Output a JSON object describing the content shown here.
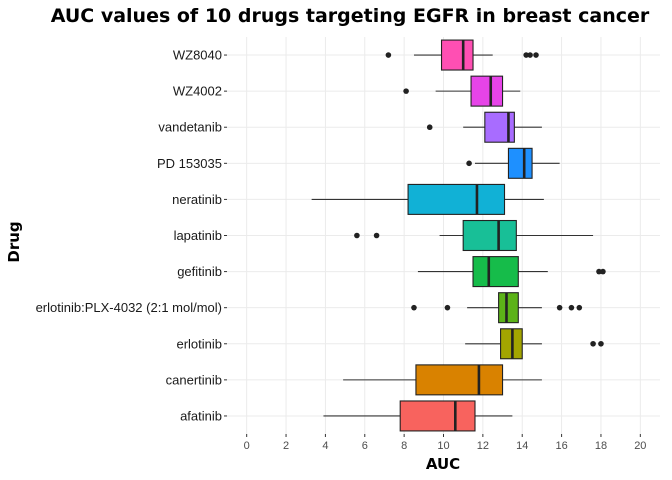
{
  "chart_data": {
    "type": "boxplot",
    "orientation": "horizontal",
    "title": "AUC values of 10 drugs targeting EGFR in breast cancer",
    "xlabel": "AUC",
    "ylabel": "Drug",
    "xlim": [
      -1,
      21
    ],
    "xticks": [
      0,
      2,
      4,
      6,
      8,
      10,
      12,
      14,
      16,
      18,
      20
    ],
    "grid": true,
    "legend": "none",
    "categories": [
      "WZ8040",
      "WZ4002",
      "vandetanib",
      "PD 153035",
      "neratinib",
      "lapatinib",
      "gefitinib",
      "erlotinib:PLX-4032 (2:1 mol/mol)",
      "erlotinib",
      "canertinib",
      "afatinib"
    ],
    "series": [
      {
        "category": "WZ8040",
        "min": 8.5,
        "q1": 9.9,
        "median": 11.0,
        "q3": 11.5,
        "max": 12.5,
        "outliers": [
          7.2,
          14.2,
          14.4,
          14.7
        ],
        "color": "#FF4FB3"
      },
      {
        "category": "WZ4002",
        "min": 9.6,
        "q1": 11.4,
        "median": 12.4,
        "q3": 13.0,
        "max": 13.9,
        "outliers": [
          8.1
        ],
        "color": "#E644E8"
      },
      {
        "category": "vandetanib",
        "min": 11.0,
        "q1": 12.1,
        "median": 13.3,
        "q3": 13.6,
        "max": 15.0,
        "outliers": [
          9.3
        ],
        "color": "#A86CFF"
      },
      {
        "category": "PD 153035",
        "min": 11.6,
        "q1": 13.3,
        "median": 14.1,
        "q3": 14.5,
        "max": 15.9,
        "outliers": [
          11.3
        ],
        "color": "#1E90FF"
      },
      {
        "category": "neratinib",
        "min": 3.3,
        "q1": 8.2,
        "median": 11.7,
        "q3": 13.1,
        "max": 15.1,
        "outliers": [],
        "color": "#11B1D6"
      },
      {
        "category": "lapatinib",
        "min": 9.8,
        "q1": 11.0,
        "median": 12.8,
        "q3": 13.7,
        "max": 17.6,
        "outliers": [
          5.6,
          6.6
        ],
        "color": "#18BF97"
      },
      {
        "category": "gefitinib",
        "min": 8.7,
        "q1": 11.5,
        "median": 12.3,
        "q3": 13.8,
        "max": 15.3,
        "outliers": [
          17.9,
          18.1
        ],
        "color": "#16BC4A"
      },
      {
        "category": "erlotinib:PLX-4032 (2:1 mol/mol)",
        "min": 11.2,
        "q1": 12.8,
        "median": 13.2,
        "q3": 13.8,
        "max": 15.0,
        "outliers": [
          8.5,
          10.2,
          15.9,
          16.5,
          16.9
        ],
        "color": "#5CB318"
      },
      {
        "category": "erlotinib",
        "min": 11.1,
        "q1": 12.9,
        "median": 13.5,
        "q3": 14.0,
        "max": 15.0,
        "outliers": [
          17.6,
          18.0
        ],
        "color": "#A3A500"
      },
      {
        "category": "canertinib",
        "min": 4.9,
        "q1": 8.6,
        "median": 11.8,
        "q3": 13.0,
        "max": 15.0,
        "outliers": [],
        "color": "#D98200"
      },
      {
        "category": "afatinib",
        "min": 3.9,
        "q1": 7.8,
        "median": 10.6,
        "q3": 11.6,
        "max": 13.5,
        "outliers": [],
        "color": "#F8635E"
      }
    ]
  }
}
